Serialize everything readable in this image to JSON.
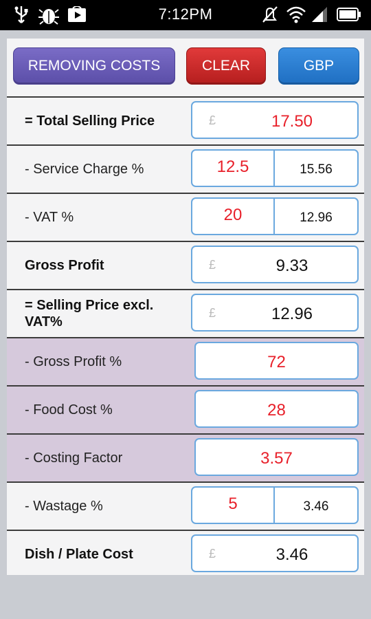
{
  "status_bar": {
    "time": "7:12PM"
  },
  "toolbar": {
    "removing_costs_label": "REMOVING COSTS",
    "clear_label": "CLEAR",
    "currency_label": "GBP"
  },
  "rows": {
    "total_selling_price": {
      "label": "= Total Selling Price",
      "currency": "£",
      "value": "17.50"
    },
    "service_charge": {
      "label": "- Service Charge %",
      "percent": "12.5",
      "amount": "15.56"
    },
    "vat": {
      "label": "- VAT %",
      "percent": "20",
      "amount": "12.96"
    },
    "gross_profit": {
      "label": "Gross Profit",
      "currency": "£",
      "value": "9.33"
    },
    "selling_price_excl_vat": {
      "label": "= Selling Price excl. VAT%",
      "currency": "£",
      "value": "12.96"
    },
    "gross_profit_pct": {
      "label": "- Gross Profit %",
      "value": "72"
    },
    "food_cost_pct": {
      "label": "- Food Cost %",
      "value": "28"
    },
    "costing_factor": {
      "label": "- Costing Factor",
      "value": "3.57"
    },
    "wastage": {
      "label": "- Wastage %",
      "percent": "5",
      "amount": "3.46"
    },
    "dish_plate_cost": {
      "label": "Dish / Plate Cost",
      "currency": "£",
      "value": "3.46"
    }
  },
  "colors": {
    "accent_purple": "#6a5cb8",
    "accent_red": "#c82828",
    "accent_blue": "#2a7fd0",
    "value_red": "#e8202a",
    "highlight_row": "#d6c9dc"
  }
}
